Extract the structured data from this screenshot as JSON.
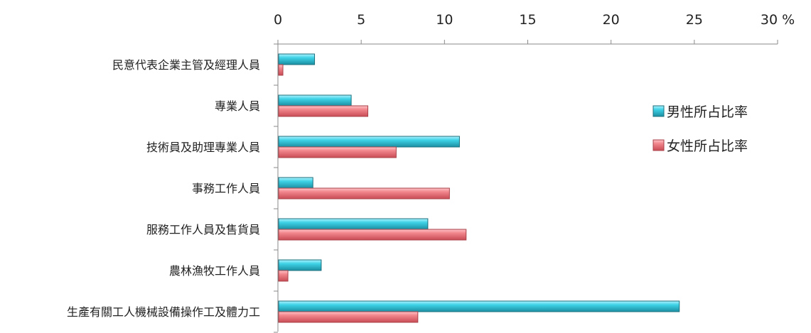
{
  "chart_data": {
    "type": "bar",
    "orientation": "horizontal",
    "categories": [
      "民意代表企業主管及經理人員",
      "專業人員",
      "技術員及助理專業人員",
      "事務工作人員",
      "服務工作人員及售貨員",
      "農林漁牧工作人員",
      "生產有關工人機械設備操作工及體力工"
    ],
    "series": [
      {
        "name": "男性所占比率",
        "color": "#33c3d6",
        "values": [
          2.2,
          4.4,
          10.9,
          2.1,
          9.0,
          2.6,
          24.1
        ]
      },
      {
        "name": "女性所占比率",
        "color": "#ee7f86",
        "values": [
          0.3,
          5.4,
          7.1,
          10.3,
          11.3,
          0.6,
          8.4
        ]
      }
    ],
    "xlim": [
      0,
      30
    ],
    "xticks": [
      "0",
      "5",
      "10",
      "15",
      "20",
      "25",
      "30 %"
    ],
    "axis_position": "top",
    "legend_position": "right",
    "grid": false
  }
}
